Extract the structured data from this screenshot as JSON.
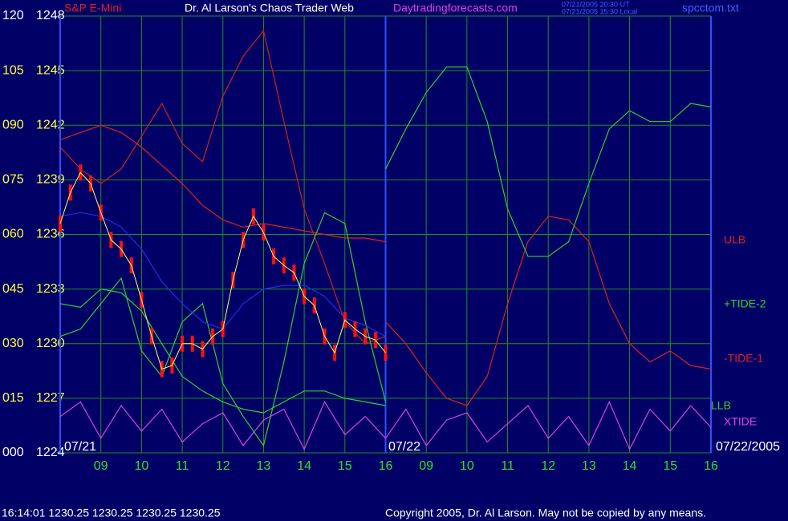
{
  "chart_data": {
    "type": "line",
    "instrument": "S&P E-Mini",
    "title": "Dr. Al Larson's Chaos Trader Web",
    "website": "Daytradingforecasts.com",
    "timestamps": [
      "07/21/2005 20:30 UT",
      "07/21/2005 15:30 Local"
    ],
    "filename": "spcctom.txt",
    "dates": [
      "07/21",
      "07/22",
      "07/22/2005"
    ],
    "status_line": "16:14:01  1230.25 1230.25 1230.25 1230.25",
    "copyright": "Copyright 2005, Dr. Al Larson. May not be copied by any means.",
    "xlim": [
      8,
      24
    ],
    "xticks": [
      {
        "value": 9,
        "label": "09"
      },
      10,
      11,
      12,
      13,
      14,
      15,
      16,
      {
        "value": 17,
        "label": "09"
      },
      {
        "value": 18,
        "label": "10"
      },
      {
        "value": 19,
        "label": "11"
      },
      {
        "value": 20,
        "label": "12"
      },
      {
        "value": 21,
        "label": "13"
      },
      {
        "value": 22,
        "label": "14"
      },
      {
        "value": 23,
        "label": "15"
      },
      {
        "value": 24,
        "label": "16"
      }
    ],
    "ylim": [
      0,
      120
    ],
    "yticks": [
      {
        "value": 0,
        "label": "000"
      },
      {
        "value": 15,
        "label": "015"
      },
      {
        "value": 30,
        "label": "030"
      },
      {
        "value": 45,
        "label": "045"
      },
      {
        "value": 60,
        "label": "060"
      },
      {
        "value": 75,
        "label": "075"
      },
      {
        "value": 90,
        "label": "090"
      },
      105,
      120
    ],
    "y2lim": [
      1224,
      1248
    ],
    "y2ticks": [
      1224,
      1227,
      1230,
      1233,
      1236,
      1239,
      1242,
      1245,
      1248
    ],
    "grid": true,
    "series": [
      {
        "name": "ULB",
        "color": "#e02020",
        "x": [
          8,
          8.5,
          9,
          9.5,
          10,
          10.5,
          11,
          11.5,
          12,
          12.5,
          13,
          13.5,
          14,
          14.5,
          15,
          15.5,
          16
        ],
        "values": [
          86,
          88,
          90,
          88,
          84,
          79,
          74,
          68,
          64,
          62,
          63,
          62,
          61,
          60,
          59,
          59,
          58
        ]
      },
      {
        "name": "-TIDE-1",
        "color": "#e02020",
        "x": [
          16,
          16.5,
          17,
          17.5,
          18,
          18.5,
          19,
          19.5,
          20,
          20.5,
          21,
          21.5,
          22,
          22.5,
          23,
          23.5,
          24
        ],
        "values": [
          36,
          30,
          22,
          15,
          13,
          21,
          41,
          58,
          65,
          64,
          58,
          41,
          30,
          25,
          28,
          24,
          23
        ]
      },
      {
        "name": "+TIDE-2",
        "color": "#30d030",
        "x": [
          16,
          16.5,
          17,
          17.5,
          18,
          18.5,
          19,
          19.5,
          20,
          20.5,
          21,
          21.5,
          22,
          22.5,
          23,
          23.5,
          24
        ],
        "values": [
          78,
          89,
          99,
          106,
          106,
          91,
          67,
          54,
          54,
          58,
          74,
          89,
          94,
          91,
          91,
          96,
          95
        ]
      },
      {
        "name": "LLB",
        "color": "#30d030",
        "x": [
          8,
          8.5,
          9,
          9.5,
          10,
          10.5,
          11,
          11.5,
          12,
          12.5,
          13,
          13.5,
          14,
          14.5,
          15,
          15.5,
          16
        ],
        "values": [
          41,
          40,
          45,
          44,
          39,
          30,
          21,
          17,
          14,
          12,
          11,
          14,
          17,
          17,
          15,
          14,
          13
        ]
      },
      {
        "name": "XTIDE",
        "color": "#e040e0",
        "x": [
          8,
          8.5,
          9,
          9.5,
          10,
          10.5,
          11,
          11.5,
          12,
          12.5,
          13,
          13.5,
          14,
          14.5,
          15,
          15.5,
          16,
          16.5,
          17,
          17.5,
          18,
          18.5,
          19,
          19.5,
          20,
          20.5,
          21,
          21.5,
          22,
          22.5,
          23,
          23.5,
          24
        ],
        "values": [
          10,
          14,
          4,
          13,
          6,
          12,
          3,
          8,
          11,
          2,
          9,
          12,
          1,
          14,
          5,
          10,
          4,
          12,
          2,
          9,
          11,
          3,
          8,
          13,
          4,
          10,
          2,
          14,
          1,
          12,
          6,
          13,
          7
        ]
      },
      {
        "color": "#d02020",
        "x": [
          8,
          8.5,
          9,
          9.5,
          10,
          10.5,
          11,
          11.5,
          12,
          12.5,
          13,
          13.5,
          14,
          14.5,
          15,
          15.5,
          16
        ],
        "values": [
          84,
          78,
          74,
          78,
          87,
          96,
          85,
          80,
          98,
          109,
          116,
          91,
          67,
          52,
          36,
          30,
          32
        ]
      },
      {
        "color": "#30d030",
        "x": [
          8,
          8.5,
          9,
          9.5,
          10,
          10.5,
          11,
          11.5,
          12,
          12.5,
          13,
          13.5,
          14,
          14.5,
          15,
          15.5,
          16
        ],
        "values": [
          32,
          34,
          41,
          48,
          28,
          21,
          36,
          41,
          19,
          10,
          2,
          25,
          52,
          66,
          63,
          36,
          14
        ]
      },
      {
        "color": "#2030e0",
        "x": [
          8,
          8.5,
          9,
          9.5,
          10,
          10.5,
          11,
          11.5,
          12,
          12.5,
          13,
          13.5,
          14,
          14.5,
          15,
          15.5,
          16
        ],
        "values": [
          65,
          66,
          65,
          62,
          56,
          47,
          41,
          36,
          34,
          41,
          45,
          46,
          46,
          43,
          37,
          35,
          32
        ]
      }
    ],
    "price": {
      "color": "#ff1010",
      "axis": "y2",
      "x": [
        8,
        8.25,
        8.5,
        8.75,
        9,
        9.25,
        9.5,
        9.75,
        10,
        10.25,
        10.5,
        10.75,
        11,
        11.25,
        11.5,
        11.75,
        12,
        12.25,
        12.5,
        12.75,
        13,
        13.25,
        13.5,
        13.75,
        14,
        14.25,
        14.5,
        14.75,
        15,
        15.25,
        15.5,
        15.75,
        16
      ],
      "values": [
        1236.6,
        1238.3,
        1239.4,
        1238.8,
        1237.2,
        1235.7,
        1235.2,
        1234.3,
        1232.4,
        1230.4,
        1228.6,
        1228.8,
        1230.0,
        1230.0,
        1229.7,
        1230.4,
        1230.8,
        1233.5,
        1235.7,
        1237.0,
        1236.1,
        1234.8,
        1234.3,
        1233.9,
        1232.6,
        1232.1,
        1230.4,
        1229.5,
        1231.3,
        1230.8,
        1230.4,
        1230.2,
        1229.5
      ]
    }
  }
}
